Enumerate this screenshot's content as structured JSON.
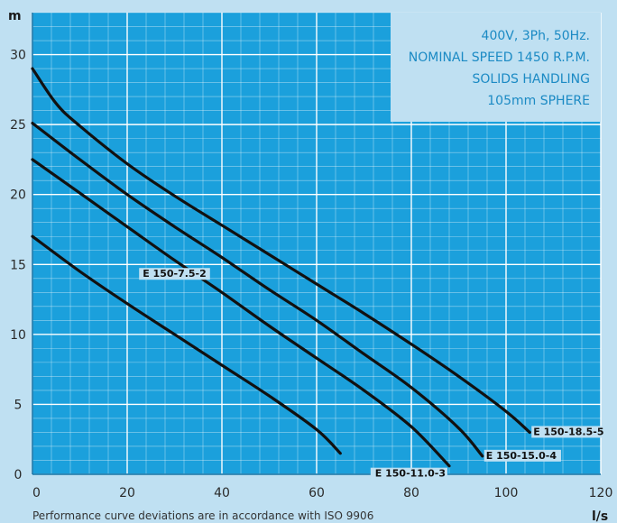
{
  "chart_data": {
    "type": "line",
    "xlabel": "l/s",
    "ylabel": "m",
    "xlim": [
      0,
      120
    ],
    "ylim": [
      0,
      33
    ],
    "x_ticks": [
      "0",
      "20",
      "40",
      "60",
      "80",
      "100",
      "120"
    ],
    "y_ticks": [
      "0",
      "5",
      "10",
      "15",
      "20",
      "25",
      "30"
    ],
    "grid": true,
    "annotations": [
      "400V, 3Ph, 50Hz.",
      "NOMINAL SPEED 1450 R.P.M.",
      "SOLIDS HANDLING",
      "105mm SPHERE"
    ],
    "series": [
      {
        "name": "E 150-18.5-5",
        "x": [
          0,
          5,
          10,
          20,
          30,
          40,
          50,
          60,
          70,
          80,
          90,
          100,
          105
        ],
        "y": [
          29,
          26.5,
          24.9,
          22.2,
          19.9,
          17.8,
          15.7,
          13.6,
          11.5,
          9.3,
          7.0,
          4.5,
          3.0
        ]
      },
      {
        "name": "E 150-15.0-4",
        "x": [
          0,
          10,
          20,
          30,
          40,
          50,
          60,
          70,
          80,
          90,
          95
        ],
        "y": [
          25.1,
          22.5,
          20.0,
          17.7,
          15.5,
          13.2,
          11.0,
          8.6,
          6.2,
          3.3,
          1.3
        ]
      },
      {
        "name": "E 150-11.0-3",
        "x": [
          0,
          10,
          20,
          30,
          40,
          50,
          60,
          70,
          80,
          88
        ],
        "y": [
          22.5,
          20.1,
          17.7,
          15.3,
          13.0,
          10.6,
          8.3,
          6.0,
          3.4,
          0.6
        ]
      },
      {
        "name": "E 150-7.5-2",
        "x": [
          0,
          10,
          20,
          30,
          40,
          50,
          60,
          65
        ],
        "y": [
          17.0,
          14.5,
          12.2,
          10.0,
          7.8,
          5.6,
          3.2,
          1.5
        ]
      }
    ]
  },
  "footnote": "Performance curve deviations are in accordance with ISO 9906",
  "colors": {
    "background": "#bfe0f2",
    "plot": "#1ba0dc",
    "grid": "#ffffff",
    "curve": "#111111",
    "note": "#1b8ac4"
  }
}
